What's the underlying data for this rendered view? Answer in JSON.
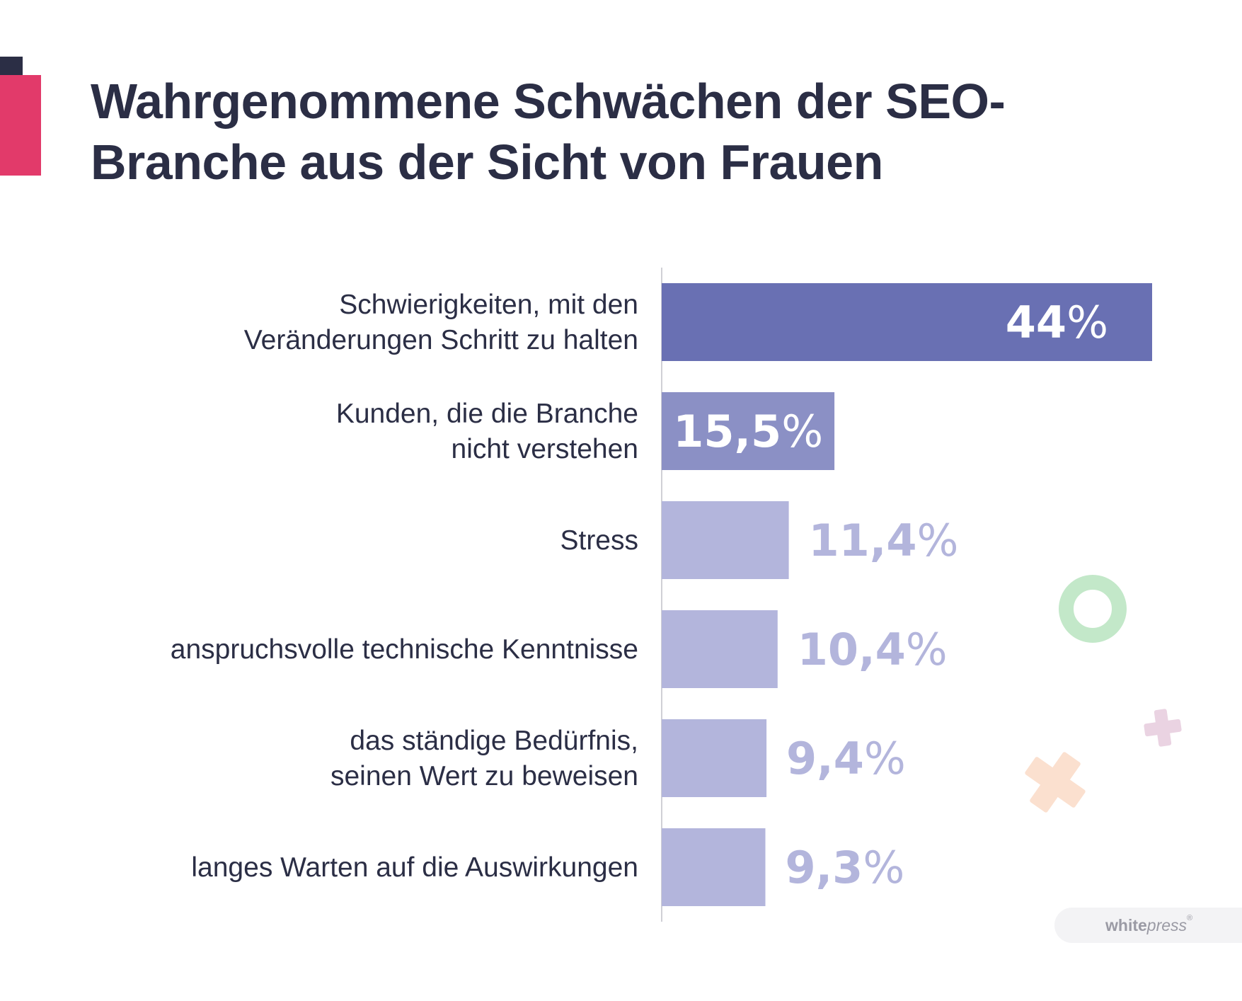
{
  "title": "Wahrgenommene Schwächen der SEO-Branche aus der Sicht von Frauen",
  "chart_data": {
    "type": "bar",
    "orientation": "horizontal",
    "title": "Wahrgenommene Schwächen der SEO-Branche aus der Sicht von Frauen",
    "categories": [
      [
        "Schwierigkeiten, mit den",
        "Veränderungen Schritt zu halten"
      ],
      [
        "Kunden, die die Branche",
        "nicht verstehen"
      ],
      [
        "Stress"
      ],
      [
        "anspruchsvolle technische Kenntnisse"
      ],
      [
        "das ständige Bedürfnis,",
        "seinen Wert zu beweisen"
      ],
      [
        "langes Warten auf die Auswirkungen"
      ]
    ],
    "values": [
      44,
      15.5,
      11.4,
      10.4,
      9.4,
      9.3
    ],
    "value_labels": [
      "44",
      "15,5",
      "11,4",
      "10,4",
      "9,4",
      "9,3"
    ],
    "unit": "%",
    "xlim": [
      0,
      44
    ],
    "colors": {
      "bar_primary": "#6970b3",
      "bar_secondary": "#8b90c5",
      "bar_light": "#b3b5dc",
      "label_inside": "#ffffff",
      "label_outside": "#b3b5dc"
    }
  },
  "logo": {
    "part1": "white",
    "part2": "press",
    "mark": "®"
  }
}
